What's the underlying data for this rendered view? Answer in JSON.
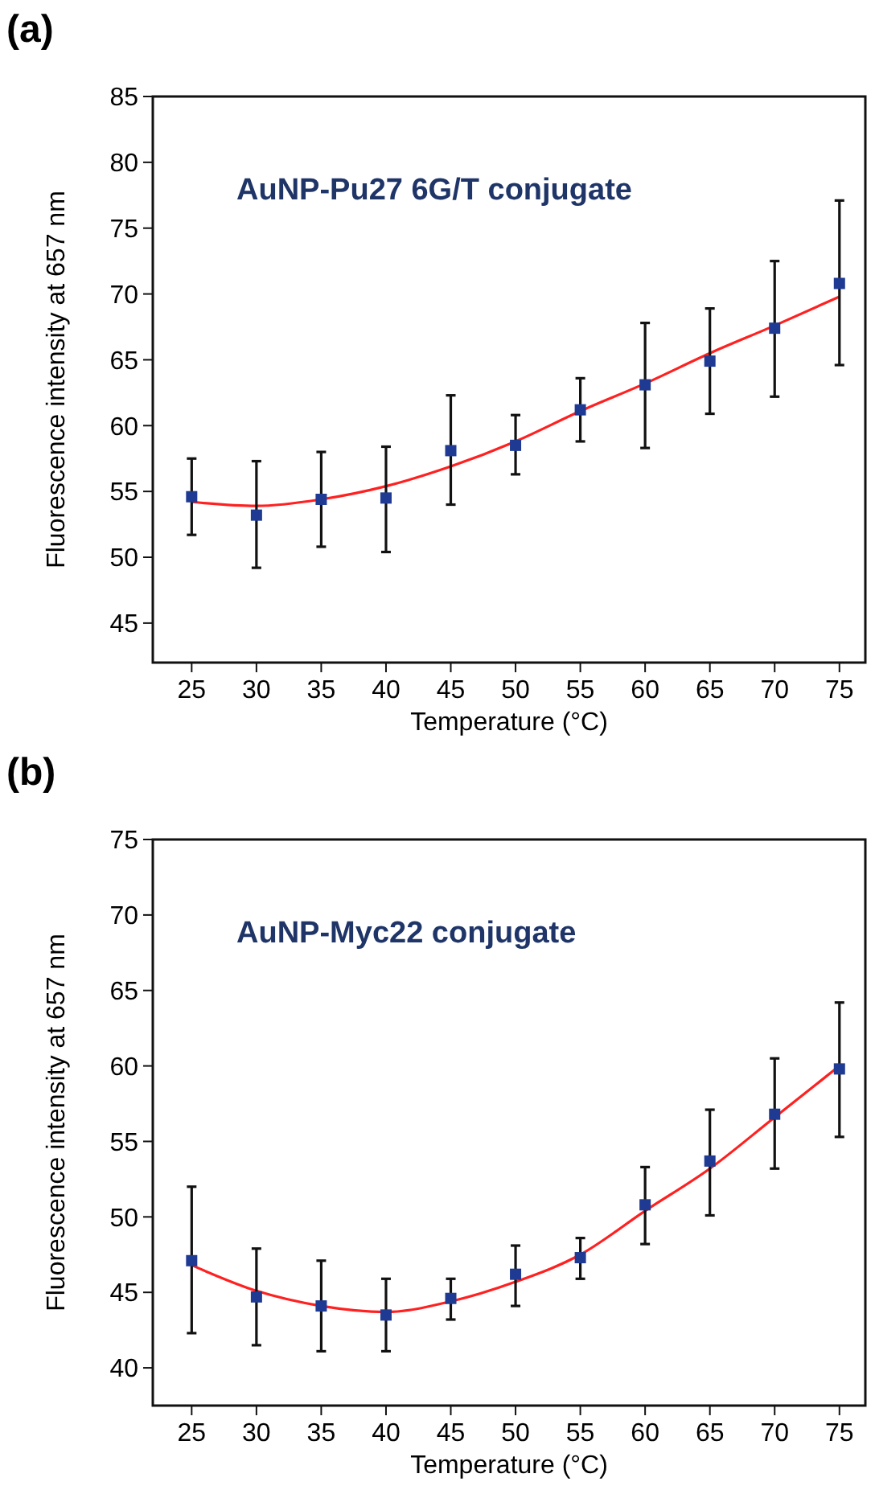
{
  "chart_data": [
    {
      "type": "scatter",
      "xlabel": "Temperature (°C)",
      "ylabel": "Fluorescence intensity at 657 nm",
      "annotations": [
        "(a)",
        "AuNP-Pu27 6G/T conjugate"
      ],
      "xlim": [
        22,
        77
      ],
      "xticks": [
        25,
        30,
        35,
        40,
        45,
        50,
        55,
        60,
        65,
        70,
        75
      ],
      "ylim": [
        42,
        85
      ],
      "yticks": [
        45,
        50,
        55,
        60,
        65,
        70,
        75,
        80,
        85
      ],
      "grid": false,
      "series": [
        {
          "marker": "square",
          "color": "#1f3a93",
          "x": [
            25,
            30,
            35,
            40,
            45,
            50,
            55,
            60,
            65,
            70,
            75
          ],
          "values": [
            54.6,
            53.2,
            54.4,
            54.5,
            58.1,
            58.5,
            61.2,
            63.1,
            64.9,
            67.4,
            70.8
          ],
          "errors": [
            [
              51.7,
              57.5
            ],
            [
              49.2,
              57.3
            ],
            [
              50.8,
              58.0
            ],
            [
              50.4,
              58.4
            ],
            [
              54.0,
              62.3
            ],
            [
              56.3,
              60.8
            ],
            [
              58.8,
              63.6
            ],
            [
              58.3,
              67.8
            ],
            [
              60.9,
              68.9
            ],
            [
              62.2,
              72.5
            ],
            [
              64.6,
              77.1
            ]
          ]
        },
        {
          "type": "line",
          "marker": "none",
          "color": "#ff2020",
          "x": [
            25,
            30,
            35,
            40,
            45,
            50,
            55,
            60,
            65,
            70,
            75
          ],
          "values": [
            54.2,
            53.9,
            54.4,
            55.4,
            56.9,
            58.8,
            61.1,
            63.2,
            65.5,
            67.6,
            69.8
          ]
        }
      ]
    },
    {
      "type": "scatter",
      "xlabel": "Temperature (°C)",
      "ylabel": "Fluorescence intensity at 657 nm",
      "annotations": [
        "(b)",
        "AuNP-Myc22 conjugate"
      ],
      "xlim": [
        22,
        77
      ],
      "xticks": [
        25,
        30,
        35,
        40,
        45,
        50,
        55,
        60,
        65,
        70,
        75
      ],
      "ylim": [
        37.5,
        75
      ],
      "yticks": [
        40,
        45,
        50,
        55,
        60,
        65,
        70,
        75
      ],
      "grid": false,
      "series": [
        {
          "marker": "square",
          "color": "#1f3a93",
          "x": [
            25,
            30,
            35,
            40,
            45,
            50,
            55,
            60,
            65,
            70,
            75
          ],
          "values": [
            47.1,
            44.7,
            44.1,
            43.5,
            44.6,
            46.2,
            47.3,
            50.8,
            53.7,
            56.8,
            59.8
          ],
          "errors": [
            [
              42.3,
              52.0
            ],
            [
              41.5,
              47.9
            ],
            [
              41.1,
              47.1
            ],
            [
              41.1,
              45.9
            ],
            [
              43.2,
              45.9
            ],
            [
              44.1,
              48.1
            ],
            [
              45.9,
              48.6
            ],
            [
              48.2,
              53.3
            ],
            [
              50.1,
              57.1
            ],
            [
              53.2,
              60.5
            ],
            [
              55.3,
              64.2
            ]
          ]
        },
        {
          "type": "line",
          "marker": "none",
          "color": "#ff2020",
          "x": [
            25,
            30,
            35,
            40,
            45,
            50,
            55,
            60,
            65,
            70,
            75
          ],
          "values": [
            46.8,
            45.1,
            44.1,
            43.7,
            44.4,
            45.7,
            47.5,
            50.4,
            53.2,
            56.6,
            60.0
          ]
        }
      ]
    }
  ]
}
